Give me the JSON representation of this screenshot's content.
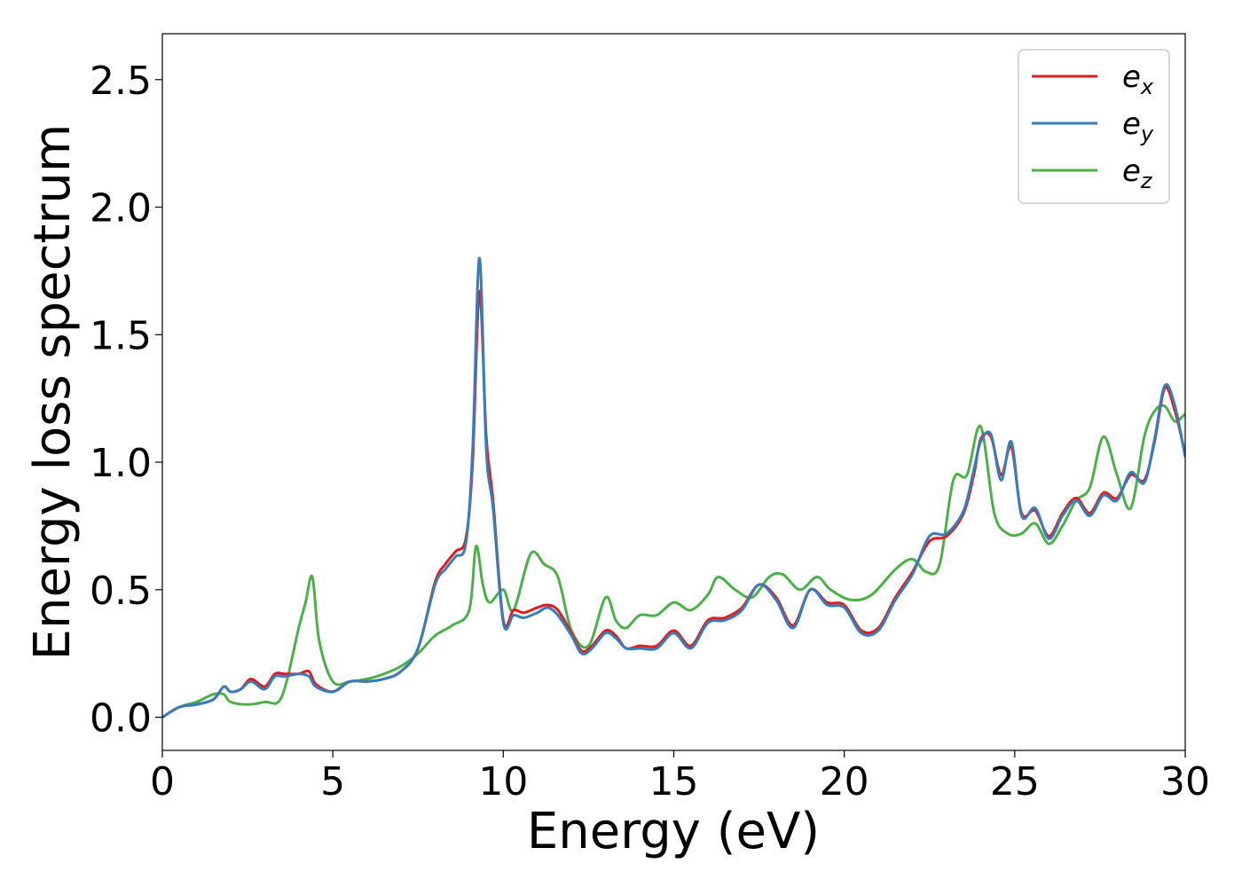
{
  "chart_data": {
    "type": "line",
    "title": "",
    "xlabel": "Energy (eV)",
    "ylabel": "Energy loss spectrum",
    "xlim": [
      0,
      30
    ],
    "ylim": [
      -0.13,
      2.68
    ],
    "xticks": [
      0,
      5,
      10,
      15,
      20,
      25,
      30
    ],
    "xtick_labels": [
      "0",
      "5",
      "10",
      "15",
      "20",
      "25",
      "30"
    ],
    "yticks": [
      0.0,
      0.5,
      1.0,
      1.5,
      2.0,
      2.5
    ],
    "ytick_labels": [
      "0.0",
      "0.5",
      "1.0",
      "1.5",
      "2.0",
      "2.5"
    ],
    "grid": false,
    "legend_position": "top-right",
    "series": [
      {
        "name": "e",
        "subscript": "x",
        "color": "#e41a1c",
        "x": [
          0,
          0.5,
          1,
          1.5,
          1.8,
          2,
          2.3,
          2.6,
          3,
          3.3,
          3.6,
          4,
          4.3,
          4.5,
          5,
          5.5,
          6,
          6.5,
          7,
          7.5,
          8,
          8.3,
          8.6,
          8.9,
          9.1,
          9.3,
          9.5,
          9.7,
          10,
          10.3,
          10.6,
          11,
          11.3,
          11.6,
          12,
          12.3,
          12.6,
          13,
          13.3,
          13.6,
          14,
          14.5,
          15,
          15.5,
          16,
          16.5,
          17,
          17.5,
          18,
          18.5,
          19,
          19.5,
          20,
          20.5,
          21,
          21.5,
          22,
          22.5,
          23,
          23.5,
          23.8,
          24,
          24.3,
          24.6,
          24.9,
          25.2,
          25.6,
          26,
          26.4,
          26.8,
          27.2,
          27.6,
          28,
          28.4,
          28.8,
          29.1,
          29.4,
          29.7,
          30
        ],
        "y": [
          0,
          0.04,
          0.05,
          0.07,
          0.12,
          0.1,
          0.11,
          0.15,
          0.12,
          0.17,
          0.17,
          0.17,
          0.18,
          0.13,
          0.1,
          0.14,
          0.14,
          0.15,
          0.18,
          0.27,
          0.53,
          0.6,
          0.65,
          0.7,
          1.0,
          1.67,
          1.1,
          0.85,
          0.38,
          0.42,
          0.41,
          0.43,
          0.44,
          0.42,
          0.33,
          0.26,
          0.28,
          0.34,
          0.32,
          0.27,
          0.28,
          0.28,
          0.34,
          0.28,
          0.38,
          0.39,
          0.43,
          0.52,
          0.47,
          0.36,
          0.5,
          0.45,
          0.44,
          0.34,
          0.35,
          0.47,
          0.57,
          0.69,
          0.71,
          0.8,
          0.95,
          1.09,
          1.1,
          0.95,
          1.06,
          0.8,
          0.81,
          0.71,
          0.8,
          0.86,
          0.8,
          0.88,
          0.86,
          0.95,
          0.93,
          1.08,
          1.29,
          1.2,
          1.03
        ]
      },
      {
        "name": "e",
        "subscript": "y",
        "color": "#377eb8",
        "x": [
          0,
          0.5,
          1,
          1.5,
          1.8,
          2,
          2.3,
          2.6,
          3,
          3.3,
          3.6,
          4,
          4.3,
          4.5,
          5,
          5.5,
          6,
          6.5,
          7,
          7.5,
          8,
          8.3,
          8.6,
          8.9,
          9.1,
          9.3,
          9.5,
          9.7,
          10,
          10.3,
          10.6,
          11,
          11.3,
          11.6,
          12,
          12.3,
          12.6,
          13,
          13.3,
          13.6,
          14,
          14.5,
          15,
          15.5,
          16,
          16.5,
          17,
          17.5,
          18,
          18.5,
          19,
          19.5,
          20,
          20.5,
          21,
          21.5,
          22,
          22.5,
          23,
          23.5,
          23.8,
          24,
          24.3,
          24.6,
          24.9,
          25.2,
          25.6,
          26,
          26.4,
          26.8,
          27.2,
          27.6,
          28,
          28.4,
          28.8,
          29.1,
          29.4,
          29.7,
          30
        ],
        "y": [
          0,
          0.04,
          0.05,
          0.07,
          0.12,
          0.1,
          0.11,
          0.14,
          0.11,
          0.16,
          0.16,
          0.17,
          0.16,
          0.12,
          0.1,
          0.14,
          0.14,
          0.15,
          0.18,
          0.27,
          0.52,
          0.58,
          0.63,
          0.68,
          1.05,
          1.8,
          1.05,
          0.82,
          0.37,
          0.4,
          0.39,
          0.41,
          0.43,
          0.4,
          0.32,
          0.25,
          0.27,
          0.33,
          0.31,
          0.27,
          0.27,
          0.27,
          0.33,
          0.27,
          0.37,
          0.38,
          0.42,
          0.52,
          0.46,
          0.35,
          0.5,
          0.44,
          0.43,
          0.33,
          0.34,
          0.46,
          0.56,
          0.71,
          0.72,
          0.81,
          0.97,
          1.08,
          1.11,
          0.93,
          1.08,
          0.79,
          0.82,
          0.7,
          0.79,
          0.85,
          0.79,
          0.87,
          0.85,
          0.96,
          0.92,
          1.09,
          1.3,
          1.22,
          1.02
        ]
      },
      {
        "name": "e",
        "subscript": "z",
        "color": "#4daf4a",
        "x": [
          0,
          0.5,
          1,
          1.5,
          1.8,
          2,
          2.5,
          3,
          3.5,
          4,
          4.2,
          4.4,
          4.6,
          5,
          5.5,
          6,
          6.5,
          7,
          7.5,
          8,
          8.5,
          9,
          9.2,
          9.4,
          9.6,
          10,
          10.3,
          10.8,
          11.2,
          11.6,
          12,
          12.5,
          13,
          13.3,
          13.6,
          14,
          14.5,
          15,
          15.5,
          16,
          16.3,
          16.8,
          17.3,
          17.8,
          18.2,
          18.7,
          19.2,
          19.6,
          20.2,
          20.8,
          21.5,
          22,
          22.4,
          22.8,
          23.2,
          23.6,
          24,
          24.4,
          24.8,
          25.2,
          25.6,
          26,
          26.4,
          26.8,
          27.2,
          27.6,
          28,
          28.4,
          28.8,
          29.1,
          29.4,
          29.7,
          30
        ],
        "y": [
          0,
          0.04,
          0.06,
          0.09,
          0.09,
          0.06,
          0.05,
          0.06,
          0.08,
          0.35,
          0.45,
          0.55,
          0.3,
          0.14,
          0.14,
          0.15,
          0.17,
          0.2,
          0.25,
          0.32,
          0.36,
          0.42,
          0.67,
          0.52,
          0.45,
          0.5,
          0.42,
          0.64,
          0.6,
          0.55,
          0.34,
          0.28,
          0.47,
          0.38,
          0.35,
          0.4,
          0.4,
          0.45,
          0.42,
          0.48,
          0.55,
          0.5,
          0.47,
          0.55,
          0.56,
          0.5,
          0.55,
          0.5,
          0.46,
          0.48,
          0.58,
          0.62,
          0.57,
          0.6,
          0.93,
          0.95,
          1.14,
          0.8,
          0.72,
          0.72,
          0.76,
          0.68,
          0.75,
          0.85,
          0.9,
          1.1,
          0.95,
          0.82,
          1.1,
          1.2,
          1.22,
          1.16,
          1.19
        ]
      }
    ]
  }
}
